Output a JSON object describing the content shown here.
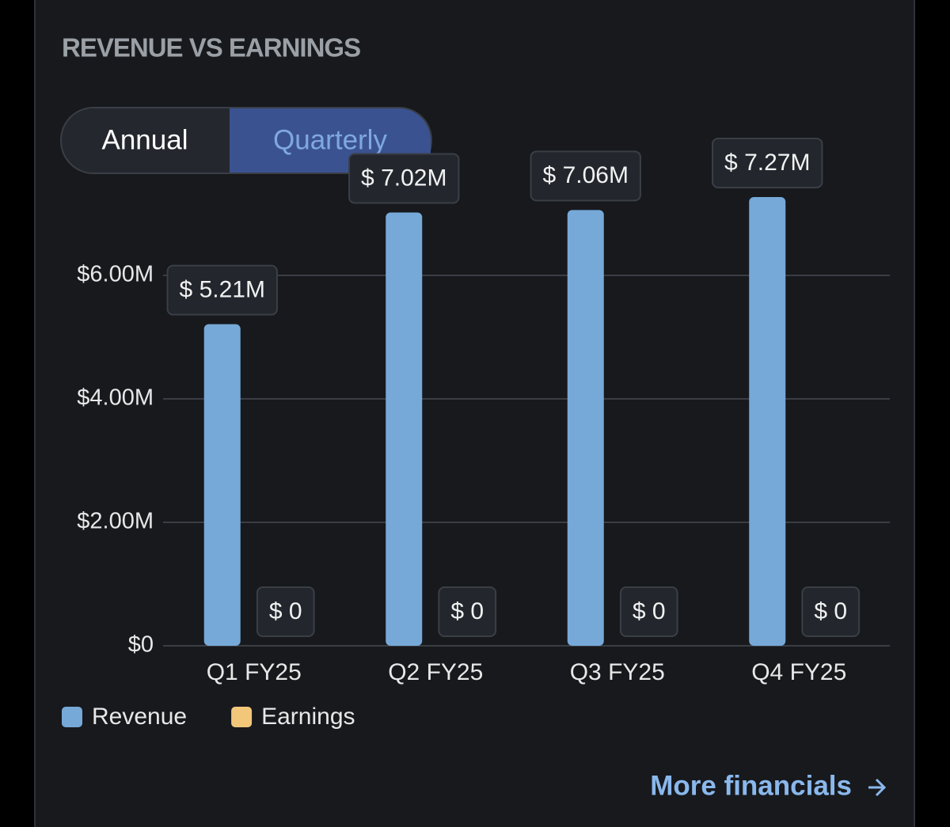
{
  "tabs": [
    "Annual",
    "Quarterly"
  ],
  "link": "More financials",
  "chart_data": {
    "type": "bar",
    "title": "REVENUE VS EARNINGS",
    "categories": [
      "Q1 FY25",
      "Q2 FY25",
      "Q3 FY25",
      "Q4 FY25"
    ],
    "series": [
      {
        "name": "Revenue",
        "color": "#76a9d8",
        "values": [
          5210000,
          7020000,
          7060000,
          7270000
        ],
        "value_labels": [
          "$ 5.21M",
          "$ 7.02M",
          "$ 7.06M",
          "$ 7.27M"
        ]
      },
      {
        "name": "Earnings",
        "color": "#f2c77a",
        "values": [
          0,
          0,
          0,
          0
        ],
        "value_labels": [
          "$ 0",
          "$ 0",
          "$ 0",
          "$ 0"
        ]
      }
    ],
    "ylim": [
      0,
      8000000
    ],
    "yticks": [
      {
        "value": 0,
        "label": "$0"
      },
      {
        "value": 2000000,
        "label": "$2.00M"
      },
      {
        "value": 4000000,
        "label": "$4.00M"
      },
      {
        "value": 6000000,
        "label": "$6.00M"
      }
    ],
    "grid": true
  }
}
